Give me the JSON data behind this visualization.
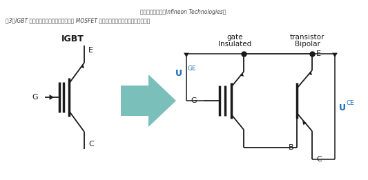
{
  "bg_color": "#ffffff",
  "line_color": "#1a1a1a",
  "arrow_color": "#7abfba",
  "text_color": "#1a1a1a",
  "caption_color": "#444444",
  "uce_color": "#1a6db5",
  "uge_color": "#1a6db5",
  "igbt_label": "IGBT",
  "ins_gate_label1": "Insulated",
  "ins_gate_label2": "gate",
  "bipolar_label1": "Bipolar",
  "bipolar_label2": "transistor",
  "label_G_igbt": "G",
  "label_C_igbt": "C",
  "label_E_igbt": "E",
  "label_G_mos": "G",
  "label_B": "B",
  "label_C2": "C",
  "label_E2": "E",
  "label_UCE_main": "U",
  "label_UCE_sub": "CE",
  "label_UGE_main": "U",
  "label_UGE_sub": "GE",
  "caption_line1": "图3：IGBT 的概念结构展示了构成絶缘栅的 MOSFET 和作为功率处理部分的双极晶体管结",
  "caption_line2": "构。（图片来源：Infineon Technologies）"
}
